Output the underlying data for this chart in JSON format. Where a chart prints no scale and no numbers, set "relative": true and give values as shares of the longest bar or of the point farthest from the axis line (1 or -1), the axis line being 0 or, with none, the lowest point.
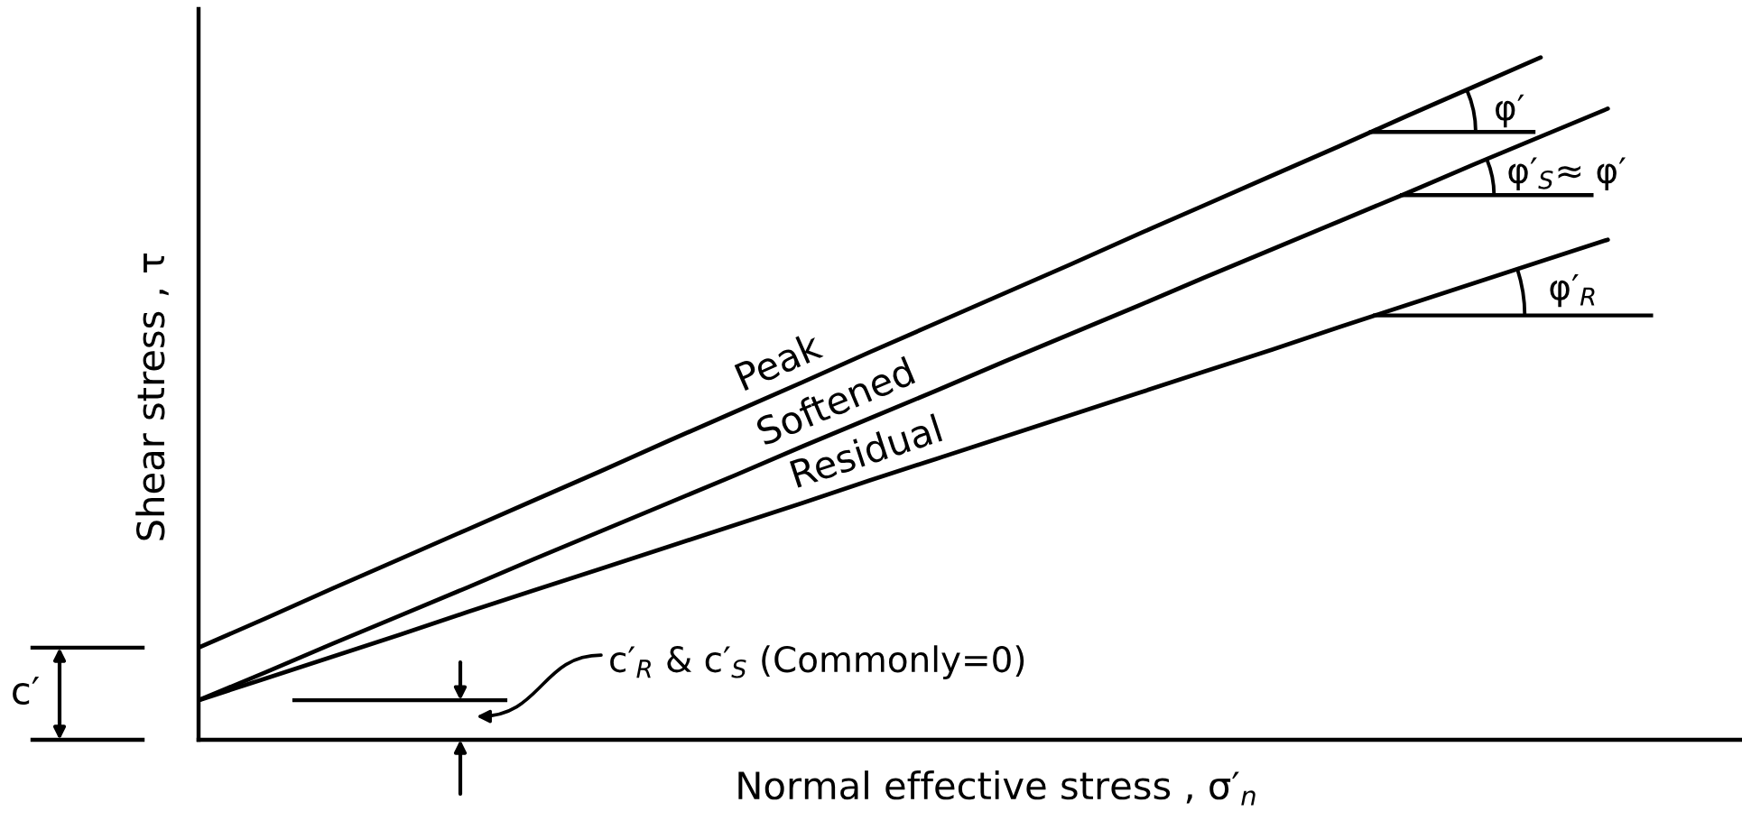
{
  "chart_data": {
    "type": "line",
    "relative": true,
    "line_style": "solid",
    "xlabel": "Normal effective stress , σ′$_{n}$",
    "ylabel": "Shear stress , τ",
    "categories": [
      null,
      null,
      null,
      null,
      null,
      null,
      null,
      null,
      null,
      null,
      null,
      null,
      null,
      null,
      null,
      null,
      null,
      null,
      null,
      null,
      null,
      null,
      null,
      null
    ],
    "series": [
      {
        "name": "Peak",
        "color": "#000000",
        "values": [
          0.135,
          0.178,
          0.222,
          0.265,
          0.308,
          0.351,
          0.394,
          0.438,
          0.481,
          0.524,
          0.568,
          0.611,
          0.654,
          0.697,
          0.741,
          0.784,
          0.827,
          0.87,
          0.914,
          0.957,
          1.0,
          null,
          null,
          null
        ]
      },
      {
        "name": "Softened",
        "color": "#000000",
        "values": [
          0.058,
          0.099,
          0.141,
          0.182,
          0.223,
          0.265,
          0.306,
          0.347,
          0.388,
          0.43,
          0.471,
          0.512,
          0.554,
          0.595,
          0.636,
          0.678,
          0.719,
          0.76,
          0.801,
          0.843,
          0.884,
          0.925,
          null,
          null
        ]
      },
      {
        "name": "Residual",
        "color": "#000000",
        "values": [
          0.058,
          0.09,
          0.122,
          0.154,
          0.187,
          0.219,
          0.251,
          0.283,
          0.315,
          0.347,
          0.38,
          0.412,
          0.444,
          0.476,
          0.508,
          0.54,
          0.572,
          0.605,
          0.637,
          0.669,
          0.701,
          0.733,
          null,
          null
        ]
      }
    ],
    "annotations": [
      "φ′",
      "φ′$_{S}$≈ φ′",
      "φ′$_{R}$",
      "c′",
      "c′$_{R}$ & c′$_{S}$ (Commonly=0)"
    ]
  }
}
